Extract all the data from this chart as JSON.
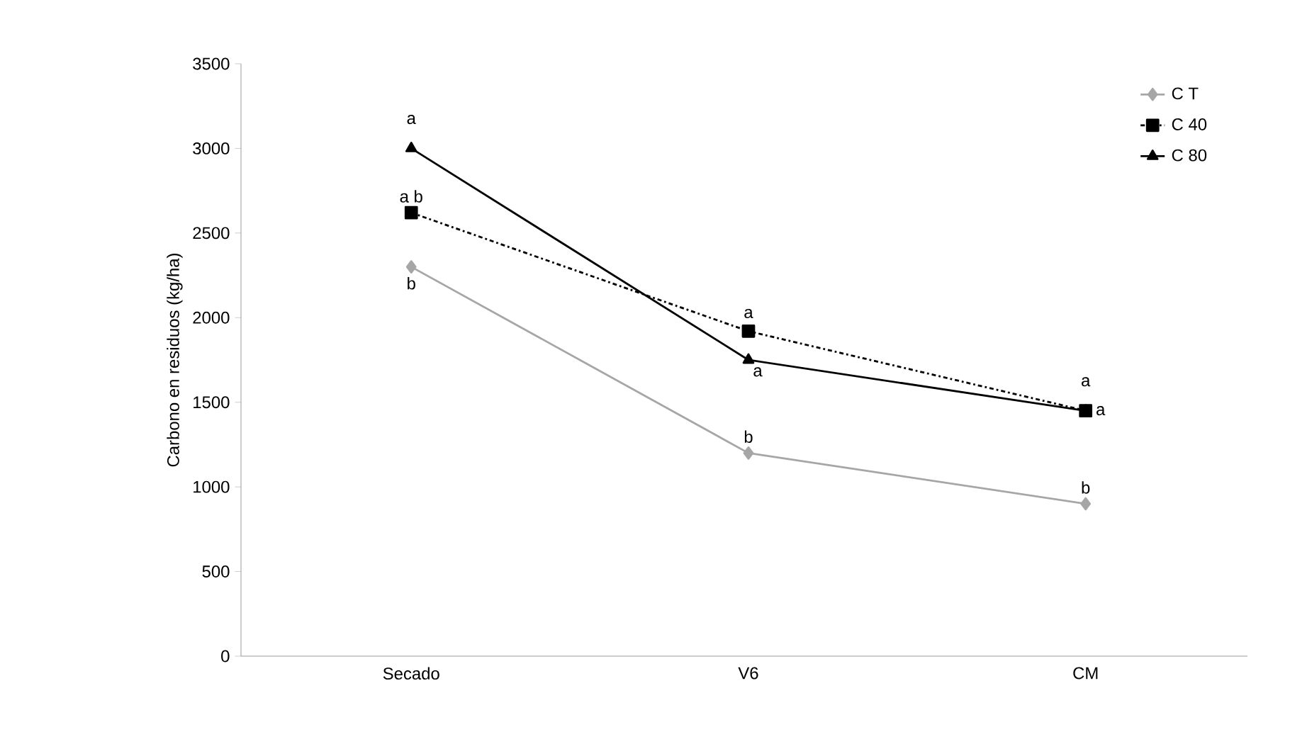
{
  "chart_data": {
    "type": "line",
    "ylabel": "Carbono en residuos (kg/ha)",
    "categories": [
      "Secado",
      "V6",
      "CM"
    ],
    "series": [
      {
        "name": "C T",
        "color": "#a6a6a6",
        "marker": "diamond",
        "line_style": "solid",
        "values": [
          2300,
          1200,
          900
        ]
      },
      {
        "name": "C 40",
        "color": "#000000",
        "marker": "square",
        "line_style": "dashed",
        "values": [
          2620,
          1920,
          1450
        ]
      },
      {
        "name": "C 80",
        "color": "#000000",
        "marker": "triangle",
        "line_style": "solid",
        "values": [
          3000,
          1750,
          1450
        ]
      }
    ],
    "ylim": [
      0,
      3500
    ],
    "yticks": [
      0,
      500,
      1000,
      1500,
      2000,
      2500,
      3000,
      3500
    ],
    "grid": false,
    "legend": "top right",
    "annotations": [
      {
        "text": "a",
        "x": "Secado",
        "y": 3000
      },
      {
        "text": "a b",
        "x": "Secado",
        "y": 2620
      },
      {
        "text": "b",
        "x": "Secado",
        "y": 2300
      },
      {
        "text": "a",
        "x": "V6",
        "y": 1920
      },
      {
        "text": "a",
        "x": "V6",
        "y": 1750
      },
      {
        "text": "b",
        "x": "V6",
        "y": 1200
      },
      {
        "text": "a",
        "x": "CM",
        "y": 1450
      },
      {
        "text": "a",
        "x": "CM",
        "y": 1450
      },
      {
        "text": "b",
        "x": "CM",
        "y": 900
      }
    ]
  }
}
